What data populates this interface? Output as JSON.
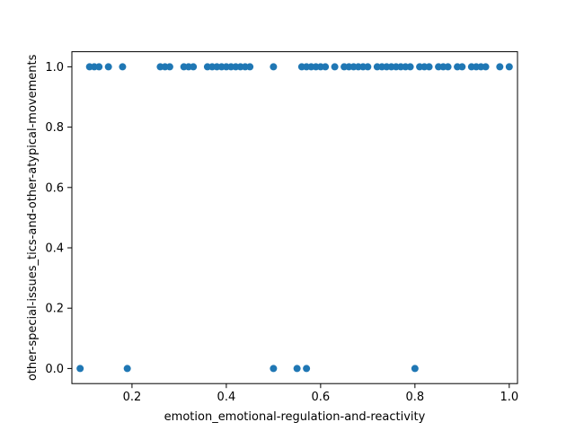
{
  "chart_data": {
    "type": "scatter",
    "xlabel": "emotion_emotional-regulation-and-reactivity",
    "ylabel": "other-special-issues_tics-and-other-atypical-movements",
    "xlim": [
      0.0725,
      1.0175
    ],
    "ylim": [
      -0.05,
      1.05
    ],
    "x_ticks": [
      "0.2",
      "0.4",
      "0.6",
      "0.8",
      "1.0"
    ],
    "x_tick_values": [
      0.2,
      0.4,
      0.6,
      0.8,
      1.0
    ],
    "y_ticks": [
      "0.0",
      "0.2",
      "0.4",
      "0.6",
      "0.8",
      "1.0"
    ],
    "y_tick_values": [
      0.0,
      0.2,
      0.4,
      0.6,
      0.8,
      1.0
    ],
    "grid": false,
    "marker_color": "#1f77b4",
    "series": [
      {
        "points": [
          [
            0.09,
            0
          ],
          [
            0.19,
            0
          ],
          [
            0.5,
            0
          ],
          [
            0.55,
            0
          ],
          [
            0.57,
            0
          ],
          [
            0.8,
            0
          ],
          [
            0.11,
            1
          ],
          [
            0.12,
            1
          ],
          [
            0.13,
            1
          ],
          [
            0.15,
            1
          ],
          [
            0.18,
            1
          ],
          [
            0.26,
            1
          ],
          [
            0.27,
            1
          ],
          [
            0.28,
            1
          ],
          [
            0.31,
            1
          ],
          [
            0.32,
            1
          ],
          [
            0.33,
            1
          ],
          [
            0.36,
            1
          ],
          [
            0.37,
            1
          ],
          [
            0.38,
            1
          ],
          [
            0.39,
            1
          ],
          [
            0.4,
            1
          ],
          [
            0.41,
            1
          ],
          [
            0.42,
            1
          ],
          [
            0.43,
            1
          ],
          [
            0.44,
            1
          ],
          [
            0.45,
            1
          ],
          [
            0.5,
            1
          ],
          [
            0.56,
            1
          ],
          [
            0.57,
            1
          ],
          [
            0.58,
            1
          ],
          [
            0.59,
            1
          ],
          [
            0.6,
            1
          ],
          [
            0.61,
            1
          ],
          [
            0.63,
            1
          ],
          [
            0.65,
            1
          ],
          [
            0.66,
            1
          ],
          [
            0.67,
            1
          ],
          [
            0.68,
            1
          ],
          [
            0.69,
            1
          ],
          [
            0.7,
            1
          ],
          [
            0.72,
            1
          ],
          [
            0.73,
            1
          ],
          [
            0.74,
            1
          ],
          [
            0.75,
            1
          ],
          [
            0.76,
            1
          ],
          [
            0.77,
            1
          ],
          [
            0.78,
            1
          ],
          [
            0.79,
            1
          ],
          [
            0.81,
            1
          ],
          [
            0.82,
            1
          ],
          [
            0.83,
            1
          ],
          [
            0.85,
            1
          ],
          [
            0.86,
            1
          ],
          [
            0.87,
            1
          ],
          [
            0.89,
            1
          ],
          [
            0.9,
            1
          ],
          [
            0.92,
            1
          ],
          [
            0.93,
            1
          ],
          [
            0.94,
            1
          ],
          [
            0.95,
            1
          ],
          [
            0.98,
            1
          ],
          [
            1.0,
            1
          ]
        ]
      }
    ]
  }
}
